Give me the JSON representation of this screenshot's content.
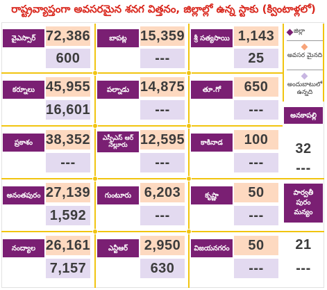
{
  "title": "రాష్ట్రవ్యాప్తంగా అవసరమైన శనగ విత్తనం, జిల్లాల్లో ఉన్న స్టాకు (క్వింటాళ్లలో)",
  "legend": {
    "district": "జిల్లా",
    "required": "అవసర మైనది",
    "available": "అందుబాటులో ఉన్నది",
    "colors": {
      "district": "#7a1f73",
      "required": "#fdd9c0",
      "available": "#e3daf0"
    }
  },
  "districts": [
    {
      "name": "వైఎస్సార్",
      "required": "72,386",
      "available": "600"
    },
    {
      "name": "బాపట్ల",
      "required": "15,359",
      "available": "---"
    },
    {
      "name": "శ్రీ సత్యసాయి",
      "required": "1,143",
      "available": "25"
    },
    {
      "name": "కర్నూలు",
      "required": "45,955",
      "available": "16,601"
    },
    {
      "name": "పల్నాడు",
      "required": "14,875",
      "available": "---"
    },
    {
      "name": "తూ.గో",
      "required": "650",
      "available": "---"
    },
    {
      "name": "ప్రకాశం",
      "required": "38,352",
      "available": "---"
    },
    {
      "name": "ఎస్పీఎస్ ఆర్ నెల్లూరు",
      "required": "12,595",
      "available": "---"
    },
    {
      "name": "కాకినాడ",
      "required": "100",
      "available": "---"
    },
    {
      "name": "అనకాపల్లి",
      "required": "32",
      "available": "---"
    },
    {
      "name": "అనంతపురం",
      "required": "27,139",
      "available": "1,592"
    },
    {
      "name": "గుంటూరు",
      "required": "6,203",
      "available": "---"
    },
    {
      "name": "కృష్ణా",
      "required": "50",
      "available": "---"
    },
    {
      "name": "పార్వతీ పురం మన్యం",
      "required": "21",
      "available": "---"
    },
    {
      "name": "నంద్యాల",
      "required": "26,161",
      "available": "7,157"
    },
    {
      "name": "ఎన్టీఆర్",
      "required": "2,950",
      "available": "630"
    },
    {
      "name": "విజయనగరం",
      "required": "50",
      "available": "---"
    }
  ]
}
